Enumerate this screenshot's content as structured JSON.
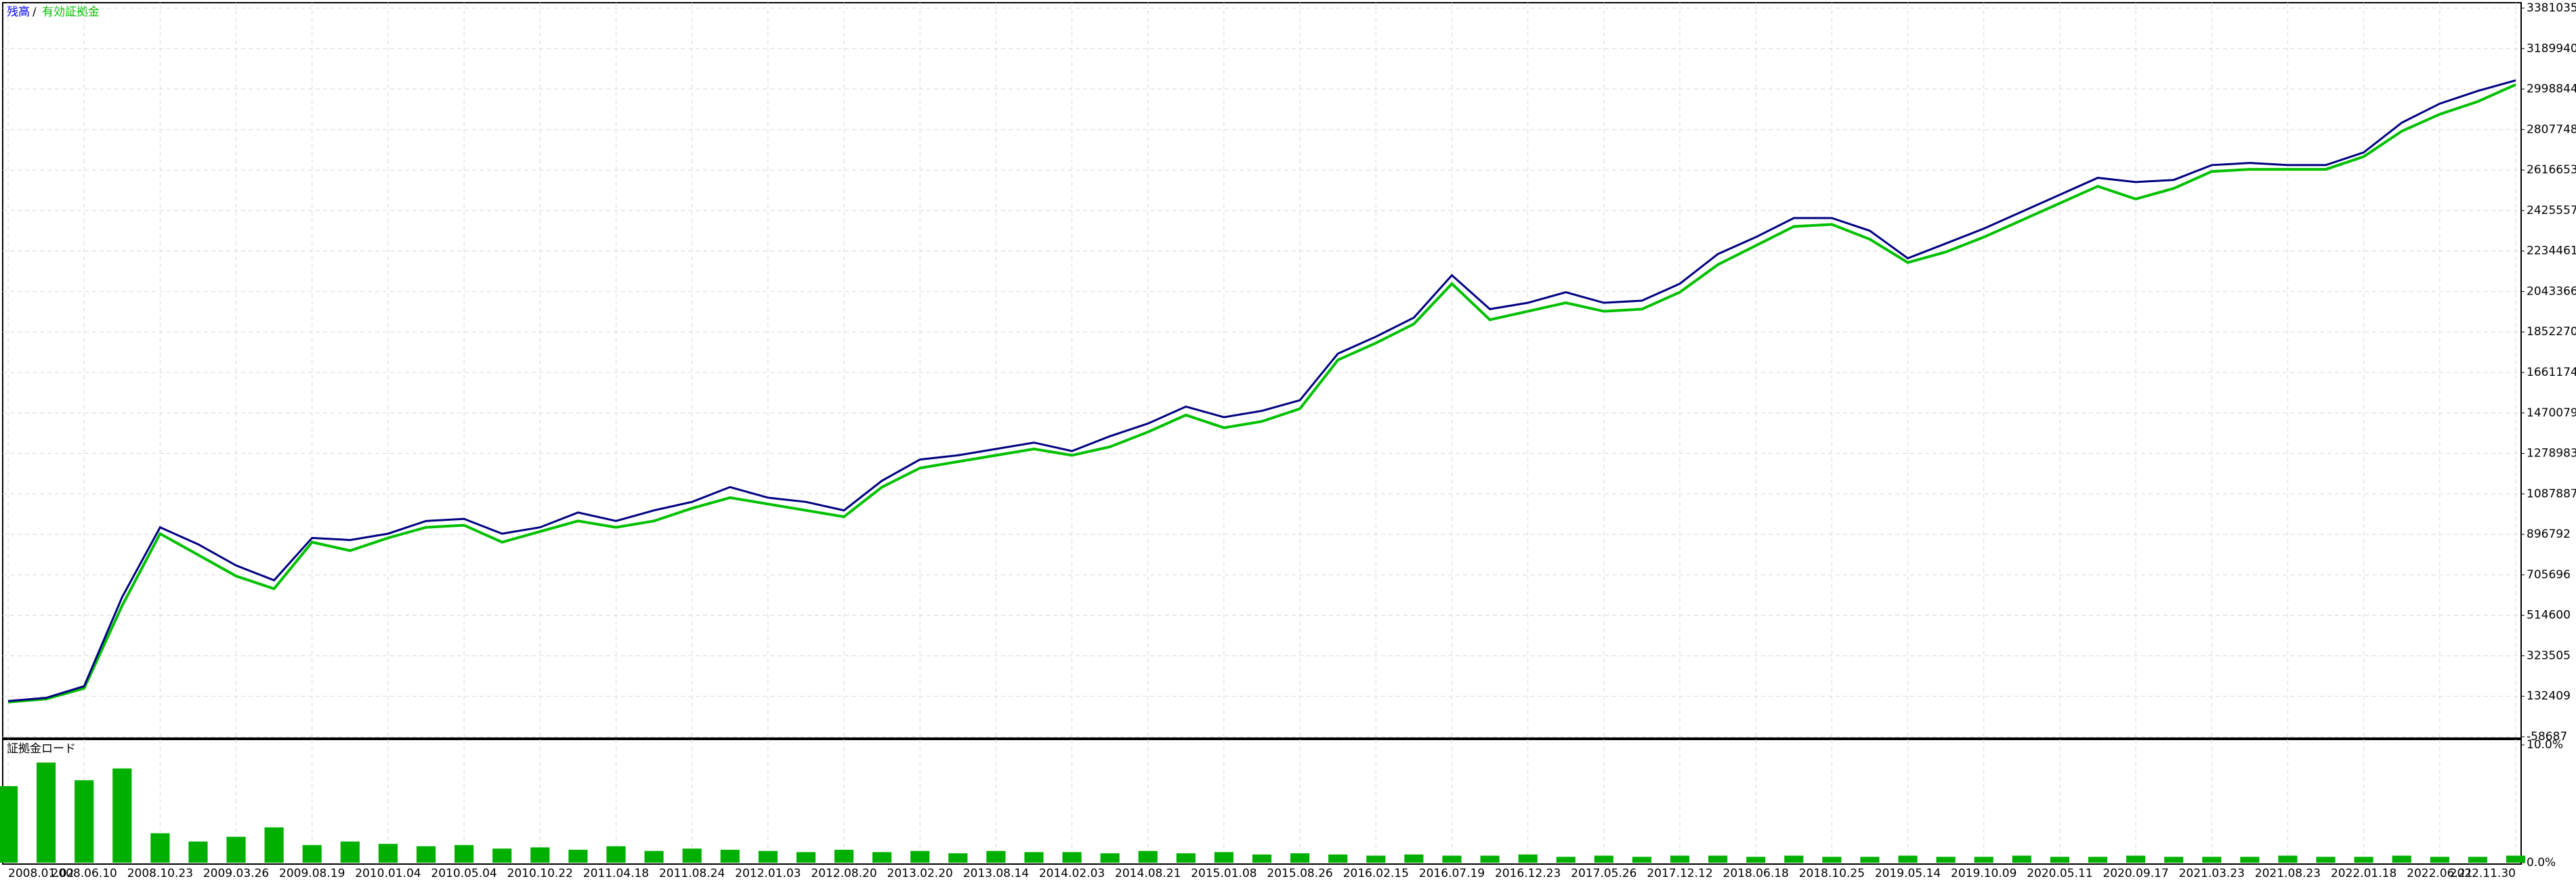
{
  "chart_data": [
    {
      "type": "line",
      "legend": [
        "残高",
        "/",
        "有効証拠金"
      ],
      "categories": [
        "2008.01.02",
        null,
        "2008.06.10",
        null,
        "2008.10.23",
        null,
        "2009.03.26",
        null,
        "2009.08.19",
        null,
        "2010.01.04",
        null,
        "2010.05.04",
        null,
        "2010.10.22",
        null,
        "2011.04.18",
        null,
        "2011.08.24",
        null,
        "2012.01.03",
        null,
        "2012.08.20",
        null,
        "2013.02.20",
        null,
        "2013.08.14",
        null,
        "2014.02.03",
        null,
        "2014.08.21",
        null,
        "2015.01.08",
        null,
        "2015.08.26",
        null,
        "2016.02.15",
        null,
        "2016.07.19",
        null,
        "2016.12.23",
        null,
        "2017.05.26",
        null,
        "2017.12.12",
        null,
        "2018.06.18",
        null,
        "2018.10.25",
        null,
        "2019.05.14",
        null,
        "2019.10.09",
        null,
        "2020.05.11",
        null,
        "2020.09.17",
        null,
        "2021.03.23",
        null,
        "2021.08.23",
        null,
        "2022.01.18",
        null,
        "2022.06.21",
        null,
        "2022.11.30"
      ],
      "series": [
        {
          "name": "有効証拠金",
          "color": "#00c000",
          "values": [
            105000,
            120000,
            170000,
            560000,
            900000,
            800000,
            700000,
            640000,
            860000,
            820000,
            880000,
            930000,
            940000,
            860000,
            910000,
            960000,
            930000,
            960000,
            1020000,
            1070000,
            1040000,
            1010000,
            980000,
            1120000,
            1210000,
            1240000,
            1270000,
            1300000,
            1270000,
            1310000,
            1380000,
            1460000,
            1400000,
            1430000,
            1490000,
            1720000,
            1800000,
            1890000,
            2080000,
            1910000,
            1950000,
            1990000,
            1950000,
            1960000,
            2040000,
            2170000,
            2260000,
            2350000,
            2360000,
            2290000,
            2180000,
            2230000,
            2300000,
            2380000,
            2460000,
            2540000,
            2480000,
            2530000,
            2610000,
            2620000,
            2620000,
            2620000,
            2680000,
            2800000,
            2880000,
            2940000,
            3020000
          ]
        },
        {
          "name": "残高",
          "color": "#000080",
          "values": [
            110000,
            125000,
            180000,
            600000,
            930000,
            850000,
            750000,
            680000,
            880000,
            870000,
            900000,
            960000,
            970000,
            900000,
            930000,
            1000000,
            960000,
            1010000,
            1050000,
            1120000,
            1070000,
            1050000,
            1010000,
            1150000,
            1250000,
            1270000,
            1300000,
            1330000,
            1290000,
            1360000,
            1420000,
            1500000,
            1450000,
            1480000,
            1530000,
            1750000,
            1830000,
            1920000,
            2120000,
            1960000,
            1990000,
            2040000,
            1990000,
            2000000,
            2080000,
            2220000,
            2300000,
            2390000,
            2390000,
            2330000,
            2200000,
            2270000,
            2340000,
            2420000,
            2500000,
            2580000,
            2560000,
            2570000,
            2640000,
            2650000,
            2640000,
            2640000,
            2700000,
            2840000,
            2930000,
            2990000,
            3040000
          ]
        }
      ],
      "ylim": [
        -58687,
        3381035
      ],
      "yticks": [
        -58687,
        132409,
        323505,
        514600,
        705696,
        896792,
        1087887,
        1278983,
        1470079,
        1661174,
        1852270,
        2043366,
        2234461,
        2425557,
        2616653,
        2807748,
        2998844,
        3189940,
        3381035
      ],
      "grid": true
    },
    {
      "type": "bar",
      "title": "証拠金ロード",
      "color": "#00b000",
      "values": [
        6.5,
        8.5,
        7.0,
        8.0,
        2.5,
        1.8,
        2.2,
        3.0,
        1.5,
        1.8,
        1.6,
        1.4,
        1.5,
        1.2,
        1.3,
        1.1,
        1.4,
        1.0,
        1.2,
        1.1,
        1.0,
        0.9,
        1.1,
        0.9,
        1.0,
        0.8,
        1.0,
        0.9,
        0.9,
        0.8,
        1.0,
        0.8,
        0.9,
        0.7,
        0.8,
        0.7,
        0.6,
        0.7,
        0.6,
        0.6,
        0.7,
        0.5,
        0.6,
        0.5,
        0.6,
        0.6,
        0.5,
        0.6,
        0.5,
        0.5,
        0.6,
        0.5,
        0.5,
        0.6,
        0.5,
        0.5,
        0.6,
        0.5,
        0.5,
        0.5,
        0.6,
        0.5,
        0.5,
        0.6,
        0.5,
        0.5,
        0.6
      ],
      "ylim": [
        0,
        10
      ],
      "yticks": [
        {
          "value": 0,
          "label": "0.0%"
        },
        {
          "value": 10,
          "label": "10.0%"
        }
      ]
    }
  ]
}
